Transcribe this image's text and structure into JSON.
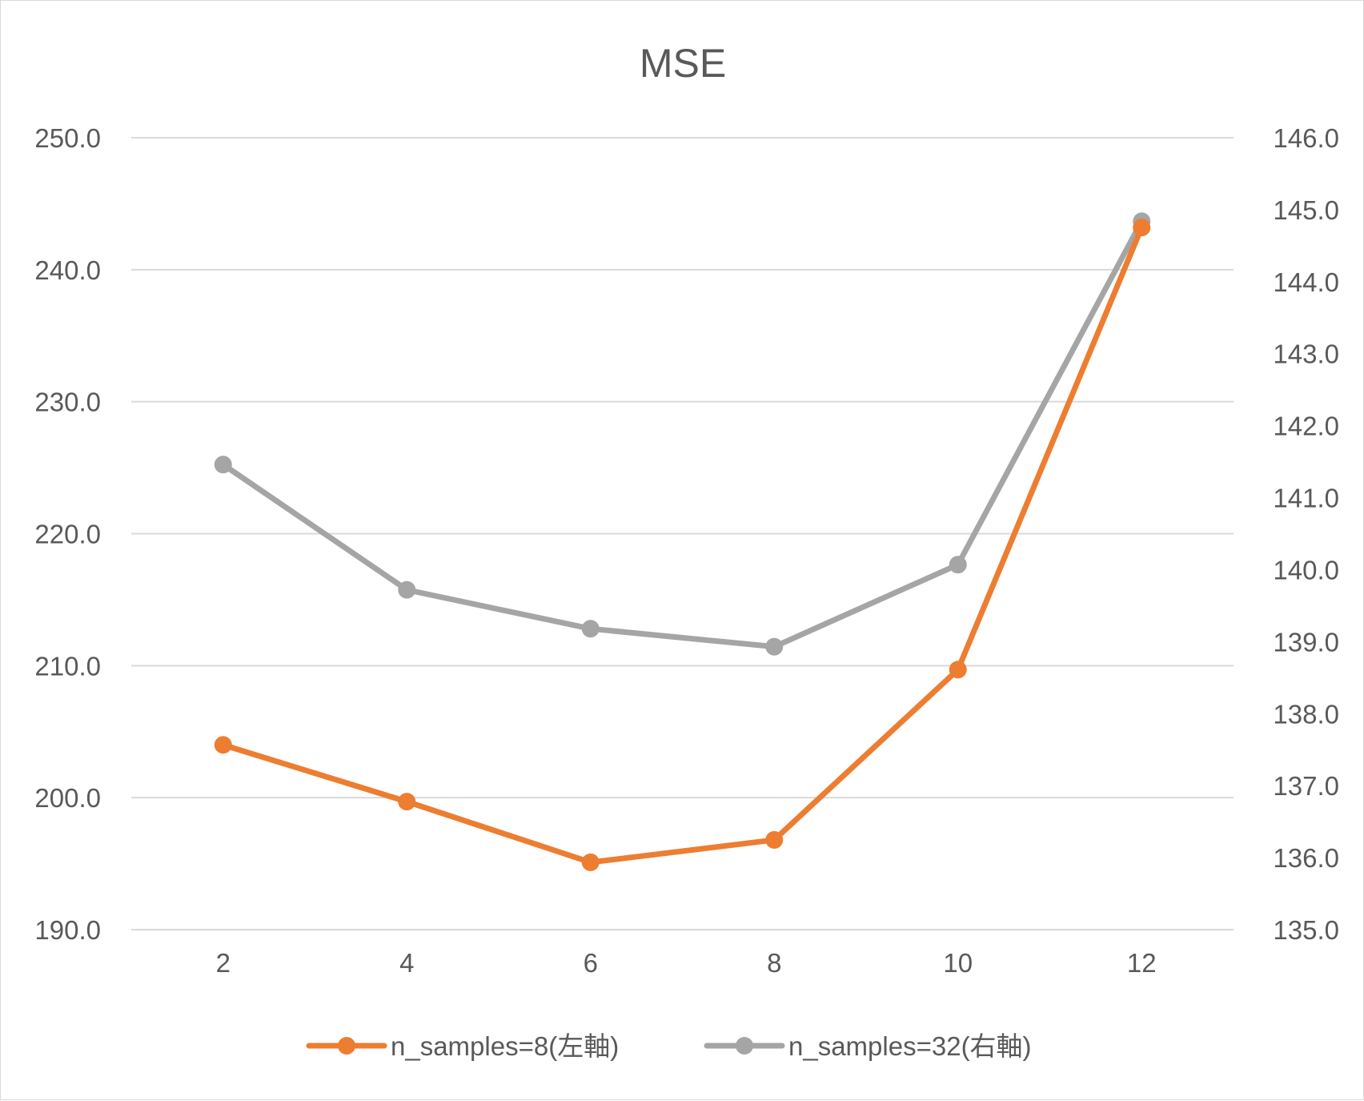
{
  "chart_data": {
    "type": "line",
    "title": "MSE",
    "categories": [
      "2",
      "4",
      "6",
      "8",
      "10",
      "12"
    ],
    "y_left": {
      "ylim": [
        190.0,
        250.0
      ],
      "ticks": [
        "190.0",
        "200.0",
        "210.0",
        "220.0",
        "230.0",
        "240.0",
        "250.0"
      ]
    },
    "y_right": {
      "ylim": [
        135.0,
        146.0
      ],
      "ticks": [
        "135.0",
        "136.0",
        "137.0",
        "138.0",
        "139.0",
        "140.0",
        "141.0",
        "142.0",
        "143.0",
        "144.0",
        "145.0",
        "146.0"
      ]
    },
    "grid": true,
    "legend_position": "bottom",
    "series": [
      {
        "name": "n_samples=8(左軸)",
        "axis": "left",
        "color": "#ED7D31",
        "values": [
          204.0,
          199.7,
          195.1,
          196.8,
          209.7,
          243.2
        ]
      },
      {
        "name": "n_samples=32(右軸)",
        "axis": "right",
        "color": "#A5A5A5",
        "values": [
          141.46,
          139.72,
          139.18,
          138.93,
          140.07,
          144.84
        ]
      }
    ]
  }
}
